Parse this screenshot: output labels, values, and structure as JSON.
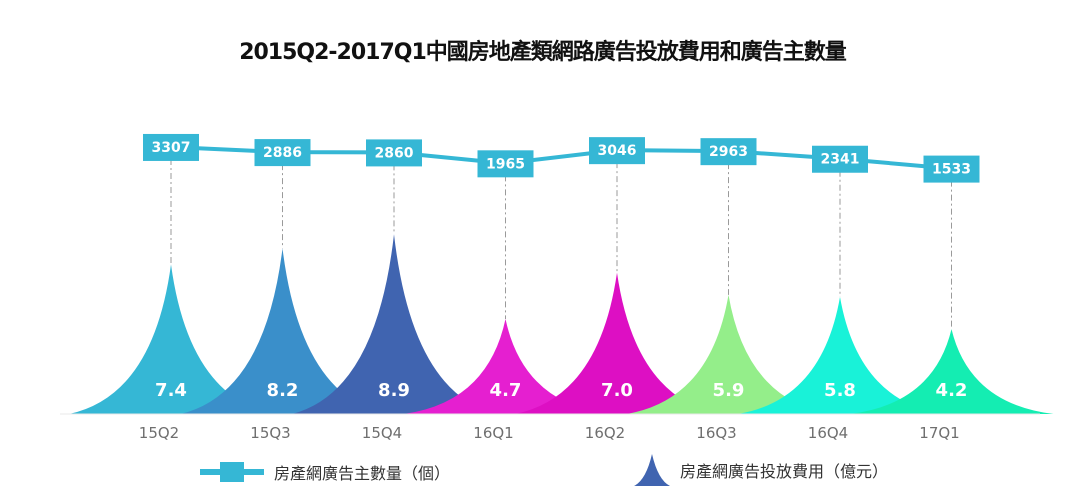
{
  "chart_data": {
    "type": "line+area",
    "title": "2015Q2-2017Q1中國房地產類網路廣告投放費用和廣告主數量",
    "categories": [
      "15Q2",
      "15Q3",
      "15Q4",
      "16Q1",
      "16Q2",
      "16Q3",
      "16Q4",
      "17Q1"
    ],
    "series": [
      {
        "name": "房產網廣告主數量（個）",
        "type": "line",
        "color": "#35b7d5",
        "values": [
          3307,
          2886,
          2860,
          1965,
          3046,
          2963,
          2341,
          1533
        ],
        "labels": [
          "3307",
          "2886",
          "2860",
          "1965",
          "3046",
          "2963",
          "2341",
          "1533"
        ]
      },
      {
        "name": "房產網廣告投放費用（億元）",
        "type": "peak",
        "values": [
          7.4,
          8.2,
          8.9,
          4.7,
          7.0,
          5.9,
          5.8,
          4.2
        ],
        "labels": [
          "7.4",
          "8.2",
          "8.9",
          "4.7",
          "7.0",
          "5.9",
          "5.8",
          "4.2"
        ],
        "colors": [
          "#35b7d5",
          "#3a8fca",
          "#4064b0",
          "#e51fd0",
          "#dd0fc3",
          "#94ee8a",
          "#19f2d8",
          "#14edb2"
        ]
      }
    ],
    "legend": {
      "line_label": "房產網廣告主數量（個）",
      "peak_label": "房產網廣告投放費用（億元）",
      "line_color": "#35b7d5",
      "peak_color": "#4064b0"
    },
    "grid": false
  }
}
